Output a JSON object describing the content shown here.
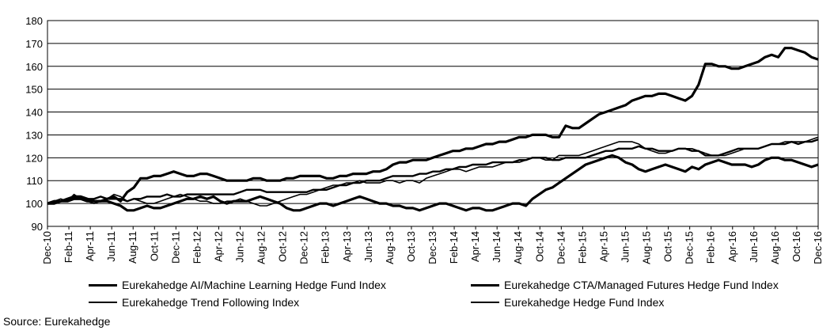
{
  "chart_data": {
    "type": "line",
    "ylim": [
      90,
      180
    ],
    "yticks": [
      90,
      100,
      110,
      120,
      130,
      140,
      150,
      160,
      170,
      180
    ],
    "x_labels": [
      "Dec-10",
      "Feb-11",
      "Apr-11",
      "Jun-11",
      "Aug-11",
      "Oct-11",
      "Dec-11",
      "Feb-12",
      "Apr-12",
      "Jun-12",
      "Aug-12",
      "Oct-12",
      "Dec-12",
      "Feb-13",
      "Apr-13",
      "Jun-13",
      "Aug-13",
      "Oct-13",
      "Dec-13",
      "Feb-14",
      "Apr-14",
      "Jun-14",
      "Aug-14",
      "Oct-14",
      "Dec-14",
      "Feb-15",
      "Apr-15",
      "Jun-15",
      "Aug-15",
      "Oct-15",
      "Dec-15",
      "Feb-16",
      "Apr-16",
      "Jun-16",
      "Aug-16",
      "Oct-16",
      "Dec-16"
    ],
    "grid": "horizontal",
    "legend_position": "bottom",
    "series": [
      {
        "name": "Eurekahedge AI/Machine Learning Hedge Fund Index",
        "stroke": 3.2,
        "values": [
          100,
          101,
          101,
          102,
          103,
          103,
          102,
          101,
          101,
          102,
          103,
          101,
          105,
          107,
          111,
          111,
          112,
          112,
          113,
          114,
          113,
          112,
          112,
          113,
          113,
          112,
          111,
          110,
          110,
          110,
          110,
          111,
          111,
          110,
          110,
          110,
          111,
          111,
          112,
          112,
          112,
          112,
          111,
          111,
          112,
          112,
          113,
          113,
          113,
          114,
          114,
          115,
          117,
          118,
          118,
          119,
          119,
          119,
          120,
          121,
          122,
          123,
          123,
          124,
          124,
          125,
          126,
          126,
          127,
          127,
          128,
          129,
          129,
          130,
          130,
          130,
          129,
          129,
          134,
          133,
          133,
          135,
          137,
          139,
          140,
          141,
          142,
          143,
          145,
          146,
          147,
          147,
          148,
          148,
          147,
          146,
          145,
          147,
          152,
          161,
          161,
          160,
          160,
          159,
          159,
          160,
          161,
          162,
          164,
          165,
          164,
          168,
          168,
          167,
          166,
          164,
          163
        ]
      },
      {
        "name": "Eurekahedge CTA/Managed Futures Hedge Fund Index",
        "stroke": 3.2,
        "values": [
          100,
          100,
          101,
          101,
          102,
          102,
          101,
          101,
          101,
          101,
          100,
          99,
          97,
          97,
          98,
          99,
          98,
          98,
          99,
          100,
          101,
          102,
          102,
          103,
          102,
          103,
          101,
          100,
          101,
          101,
          101,
          102,
          103,
          102,
          101,
          100,
          98,
          97,
          97,
          98,
          99,
          100,
          100,
          99,
          100,
          101,
          102,
          103,
          102,
          101,
          100,
          100,
          99,
          99,
          98,
          98,
          97,
          98,
          99,
          100,
          100,
          99,
          98,
          97,
          98,
          98,
          97,
          97,
          98,
          99,
          100,
          100,
          99,
          102,
          104,
          106,
          107,
          109,
          111,
          113,
          115,
          117,
          118,
          119,
          120,
          121,
          120,
          118,
          117,
          115,
          114,
          115,
          116,
          117,
          116,
          115,
          114,
          116,
          115,
          117,
          118,
          119,
          118,
          117,
          117,
          117,
          116,
          117,
          119,
          120,
          120,
          119,
          119,
          118,
          117,
          116,
          117
        ]
      },
      {
        "name": "Eurekahedge Trend Following Index",
        "stroke": 1.6,
        "values": [
          100,
          101,
          102,
          101,
          104,
          102,
          101,
          100,
          101,
          102,
          104,
          103,
          101,
          102,
          101,
          100,
          100,
          101,
          102,
          103,
          104,
          103,
          102,
          101,
          101,
          100,
          100,
          101,
          101,
          102,
          101,
          100,
          99,
          99,
          100,
          101,
          102,
          103,
          104,
          104,
          105,
          106,
          107,
          108,
          108,
          109,
          109,
          110,
          109,
          109,
          109,
          110,
          110,
          109,
          110,
          110,
          109,
          111,
          112,
          113,
          114,
          115,
          115,
          114,
          115,
          116,
          116,
          116,
          117,
          118,
          118,
          118,
          119,
          120,
          120,
          119,
          119,
          121,
          121,
          121,
          121,
          122,
          123,
          124,
          125,
          126,
          127,
          127,
          127,
          126,
          124,
          123,
          122,
          122,
          123,
          124,
          124,
          124,
          123,
          122,
          121,
          121,
          121,
          122,
          123,
          124,
          124,
          124,
          125,
          126,
          126,
          127,
          127,
          127,
          127,
          128,
          129
        ]
      },
      {
        "name": "Eurekahedge Hedge Fund Index",
        "stroke": 2.4,
        "values": [
          100,
          100,
          101,
          101,
          102,
          102,
          102,
          102,
          103,
          102,
          102,
          102,
          101,
          102,
          102,
          103,
          103,
          103,
          104,
          103,
          103,
          104,
          104,
          104,
          104,
          104,
          104,
          104,
          104,
          105,
          106,
          106,
          106,
          105,
          105,
          105,
          105,
          105,
          105,
          105,
          106,
          106,
          106,
          107,
          108,
          108,
          109,
          109,
          110,
          110,
          110,
          111,
          112,
          112,
          112,
          112,
          113,
          113,
          114,
          114,
          115,
          115,
          116,
          116,
          117,
          117,
          117,
          118,
          118,
          118,
          118,
          119,
          119,
          120,
          120,
          120,
          119,
          119,
          120,
          120,
          120,
          120,
          121,
          122,
          123,
          123,
          124,
          124,
          124,
          125,
          124,
          124,
          123,
          123,
          123,
          124,
          124,
          123,
          123,
          121,
          121,
          121,
          122,
          123,
          124,
          124,
          124,
          124,
          125,
          126,
          126,
          126,
          127,
          126,
          127,
          127,
          128
        ]
      }
    ],
    "legend": {
      "items": [
        {
          "label": "Eurekahedge AI/Machine Learning Hedge Fund Index"
        },
        {
          "label": "Eurekahedge CTA/Managed Futures Hedge Fund Index"
        },
        {
          "label": "Eurekahedge Trend Following Index"
        },
        {
          "label": "Eurekahedge Hedge Fund Index"
        }
      ]
    }
  },
  "source": "Source: Eurekahedge"
}
